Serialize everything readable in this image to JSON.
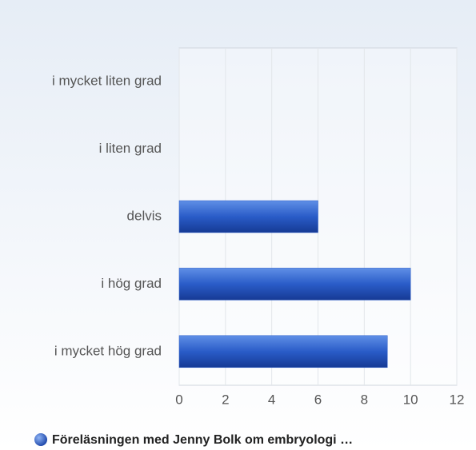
{
  "chart_data": {
    "type": "bar",
    "orientation": "horizontal",
    "categories": [
      "i mycket liten grad",
      "i liten grad",
      "delvis",
      "i hög grad",
      "i mycket hög grad"
    ],
    "series": [
      {
        "name": "Föreläsningen med Jenny Bolk om embryologi …",
        "color": "#2a5cc8",
        "values": [
          0,
          0,
          6,
          10,
          9
        ]
      }
    ],
    "xlim": [
      0,
      12
    ],
    "xticks": [
      0,
      2,
      4,
      6,
      8,
      10,
      12
    ],
    "grid": true,
    "legend": "bottom"
  }
}
